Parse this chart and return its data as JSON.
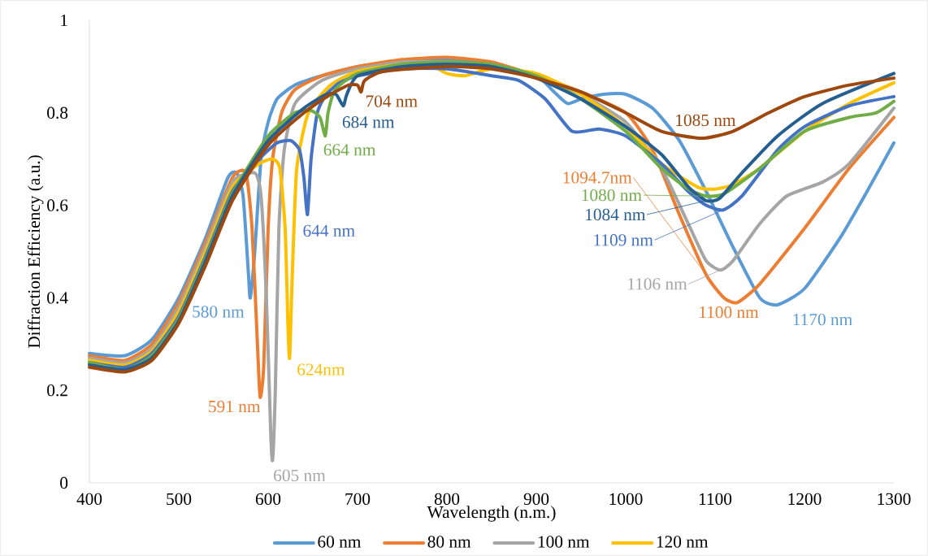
{
  "chart_data": {
    "type": "line",
    "xlabel": "Wavelength (n.m.)",
    "ylabel": "Diffraction Efficiency (a.u.)",
    "xlim": [
      400,
      1300
    ],
    "xticks": [
      400,
      500,
      600,
      700,
      800,
      900,
      1000,
      1100,
      1200,
      1300
    ],
    "ylim": [
      0,
      1
    ],
    "yticks": [
      0,
      0.2,
      0.4,
      0.6,
      0.8,
      1
    ],
    "grid": false,
    "legend": "bottom",
    "marker": "none",
    "line_style": "solid",
    "series": [
      {
        "name": "60 nm",
        "color": "#5b9bd5",
        "x": [
          400,
          440,
          470,
          500,
          530,
          555,
          565,
          572,
          578,
          580,
          585,
          592,
          600,
          610,
          630,
          660,
          700,
          750,
          800,
          850,
          900,
          920,
          935,
          950,
          975,
          1000,
          1030,
          1060,
          1090,
          1120,
          1150,
          1170,
          1200,
          1240,
          1270,
          1300
        ],
        "values": [
          0.28,
          0.275,
          0.31,
          0.4,
          0.53,
          0.66,
          0.67,
          0.62,
          0.45,
          0.4,
          0.5,
          0.7,
          0.78,
          0.83,
          0.86,
          0.88,
          0.9,
          0.91,
          0.915,
          0.905,
          0.88,
          0.845,
          0.82,
          0.83,
          0.84,
          0.84,
          0.81,
          0.74,
          0.63,
          0.51,
          0.4,
          0.385,
          0.42,
          0.53,
          0.63,
          0.735
        ]
      },
      {
        "name": "80 nm",
        "color": "#ed7d31",
        "x": [
          400,
          440,
          470,
          500,
          530,
          560,
          575,
          582,
          588,
          591,
          595,
          600,
          605,
          615,
          630,
          660,
          700,
          750,
          800,
          850,
          900,
          950,
          1000,
          1030,
          1060,
          1090,
          1110,
          1125,
          1150,
          1200,
          1250,
          1300
        ],
        "values": [
          0.275,
          0.265,
          0.3,
          0.39,
          0.52,
          0.66,
          0.67,
          0.55,
          0.3,
          0.185,
          0.25,
          0.55,
          0.7,
          0.8,
          0.85,
          0.88,
          0.9,
          0.915,
          0.92,
          0.91,
          0.88,
          0.845,
          0.8,
          0.72,
          0.58,
          0.45,
          0.4,
          0.39,
          0.43,
          0.55,
          0.68,
          0.79
        ]
      },
      {
        "name": "100 nm",
        "color": "#a5a5a5",
        "x": [
          400,
          440,
          470,
          500,
          530,
          560,
          585,
          592,
          598,
          603,
          605,
          608,
          612,
          618,
          630,
          660,
          700,
          750,
          800,
          850,
          900,
          950,
          1000,
          1040,
          1070,
          1090,
          1106,
          1120,
          1150,
          1180,
          1220,
          1250,
          1300
        ],
        "values": [
          0.27,
          0.26,
          0.29,
          0.38,
          0.51,
          0.65,
          0.67,
          0.62,
          0.4,
          0.1,
          0.05,
          0.2,
          0.55,
          0.72,
          0.82,
          0.87,
          0.895,
          0.91,
          0.91,
          0.905,
          0.88,
          0.84,
          0.78,
          0.68,
          0.56,
          0.48,
          0.46,
          0.48,
          0.56,
          0.62,
          0.65,
          0.69,
          0.81
        ]
      },
      {
        "name": "120 nm",
        "color": "#ffc000",
        "x": [
          400,
          440,
          470,
          500,
          530,
          560,
          590,
          605,
          613,
          619,
          622,
          624,
          627,
          632,
          645,
          670,
          700,
          750,
          780,
          800,
          820,
          850,
          900,
          950,
          1000,
          1040,
          1080,
          1100,
          1120,
          1150,
          1200,
          1250,
          1300
        ],
        "values": [
          0.265,
          0.255,
          0.285,
          0.37,
          0.5,
          0.64,
          0.69,
          0.7,
          0.68,
          0.55,
          0.35,
          0.27,
          0.45,
          0.68,
          0.8,
          0.86,
          0.89,
          0.905,
          0.905,
          0.885,
          0.88,
          0.895,
          0.885,
          0.84,
          0.77,
          0.69,
          0.64,
          0.635,
          0.645,
          0.68,
          0.76,
          0.82,
          0.865
        ]
      },
      {
        "color": "#4472c4",
        "x": [
          400,
          440,
          470,
          500,
          530,
          560,
          590,
          610,
          625,
          635,
          640,
          644,
          648,
          655,
          665,
          680,
          700,
          750,
          800,
          850,
          880,
          910,
          940,
          970,
          1000,
          1040,
          1070,
          1090,
          1109,
          1130,
          1170,
          1200,
          1250,
          1300
        ],
        "values": [
          0.26,
          0.25,
          0.28,
          0.36,
          0.49,
          0.63,
          0.7,
          0.735,
          0.74,
          0.72,
          0.66,
          0.58,
          0.7,
          0.8,
          0.84,
          0.865,
          0.88,
          0.895,
          0.895,
          0.88,
          0.87,
          0.83,
          0.76,
          0.765,
          0.75,
          0.69,
          0.63,
          0.6,
          0.59,
          0.62,
          0.72,
          0.77,
          0.815,
          0.835
        ]
      },
      {
        "color": "#70ad47",
        "x": [
          400,
          440,
          470,
          500,
          530,
          560,
          600,
          630,
          648,
          658,
          664,
          667,
          675,
          700,
          750,
          800,
          850,
          900,
          950,
          1000,
          1040,
          1070,
          1090,
          1110,
          1150,
          1200,
          1250,
          1280,
          1300
        ],
        "values": [
          0.26,
          0.245,
          0.275,
          0.355,
          0.485,
          0.625,
          0.75,
          0.8,
          0.805,
          0.79,
          0.75,
          0.8,
          0.85,
          0.885,
          0.905,
          0.91,
          0.905,
          0.88,
          0.83,
          0.76,
          0.68,
          0.635,
          0.62,
          0.625,
          0.68,
          0.76,
          0.79,
          0.8,
          0.825
        ]
      },
      {
        "color": "#255e91",
        "x": [
          400,
          440,
          470,
          500,
          530,
          560,
          600,
          640,
          665,
          676,
          684,
          688,
          700,
          750,
          800,
          850,
          900,
          950,
          1000,
          1040,
          1070,
          1090,
          1105,
          1130,
          1170,
          1220,
          1300
        ],
        "values": [
          0.255,
          0.245,
          0.27,
          0.35,
          0.48,
          0.62,
          0.74,
          0.81,
          0.84,
          0.84,
          0.815,
          0.84,
          0.88,
          0.9,
          0.905,
          0.9,
          0.875,
          0.83,
          0.77,
          0.71,
          0.64,
          0.61,
          0.615,
          0.67,
          0.75,
          0.82,
          0.885
        ]
      },
      {
        "color": "#9e480e",
        "x": [
          400,
          440,
          470,
          500,
          530,
          560,
          600,
          640,
          670,
          690,
          700,
          704,
          708,
          730,
          800,
          850,
          900,
          950,
          1000,
          1040,
          1085,
          1120,
          1160,
          1200,
          1250,
          1300
        ],
        "values": [
          0.25,
          0.24,
          0.265,
          0.345,
          0.47,
          0.61,
          0.73,
          0.8,
          0.84,
          0.86,
          0.86,
          0.845,
          0.87,
          0.89,
          0.9,
          0.895,
          0.875,
          0.845,
          0.8,
          0.76,
          0.745,
          0.76,
          0.8,
          0.835,
          0.86,
          0.875
        ]
      }
    ],
    "annotations": [
      {
        "text": "580 nm",
        "x": 580,
        "y": 0.4
      },
      {
        "text": "591 nm",
        "x": 591,
        "y": 0.185
      },
      {
        "text": "605 nm",
        "x": 605,
        "y": 0.05
      },
      {
        "text": "624nm",
        "x": 624,
        "y": 0.27
      },
      {
        "text": "644 nm",
        "x": 644,
        "y": 0.58
      },
      {
        "text": "664 nm",
        "x": 664,
        "y": 0.75
      },
      {
        "text": "684 nm",
        "x": 684,
        "y": 0.815
      },
      {
        "text": "704 nm",
        "x": 704,
        "y": 0.845
      },
      {
        "text": "1085 nm",
        "x": 1085,
        "y": 0.745
      },
      {
        "text": "1094.7nm",
        "x": 1090,
        "y": 0.45
      },
      {
        "text": "1080 nm",
        "x": 1090,
        "y": 0.62
      },
      {
        "text": "1084 nm",
        "x": 1090,
        "y": 0.61
      },
      {
        "text": "1109 nm",
        "x": 1109,
        "y": 0.59
      },
      {
        "text": "1106 nm",
        "x": 1106,
        "y": 0.46
      },
      {
        "text": "1100 nm",
        "x": 1125,
        "y": 0.39
      },
      {
        "text": "1170 nm",
        "x": 1170,
        "y": 0.385
      }
    ]
  }
}
